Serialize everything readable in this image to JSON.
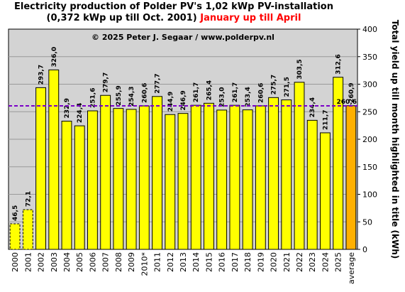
{
  "chart_data": {
    "type": "bar",
    "title_line1": "Electricity production  of Polder  PV's  1,02 kWp PV-installation",
    "title_line2": "(0,372 kWp up till Oct. 2001)",
    "title_highlight": "January up till April",
    "copyright": "© 2025 Peter J. Segaar / www.polderpv.nl",
    "ylabel": "Total yield up till month highlighted in title (kWh)",
    "ylim": [
      0,
      400
    ],
    "yticks": [
      "0",
      "50",
      "100",
      "150",
      "200",
      "250",
      "300",
      "350",
      "400"
    ],
    "categories": [
      "2000",
      "2001",
      "2002",
      "2003",
      "2004",
      "2005",
      "2006",
      "2007",
      "2008",
      "2009",
      "2010*",
      "2011",
      "2012",
      "2013",
      "2014",
      "2015",
      "2016",
      "2017",
      "2018",
      "2019",
      "2020",
      "2021",
      "2022",
      "2023",
      "2024",
      "2025",
      "average"
    ],
    "values": [
      46.5,
      72.1,
      293.7,
      326.0,
      232.9,
      224.4,
      251.6,
      279.7,
      255.9,
      254.3,
      260.6,
      277.7,
      244.9,
      246.9,
      261.7,
      265.4,
      253.0,
      261.7,
      253.4,
      260.6,
      275.7,
      271.5,
      303.5,
      234.4,
      211.7,
      312.6,
      260.9
    ],
    "value_labels": [
      "46,5",
      "72,1",
      "293,7",
      "326,0",
      "232,9",
      "224,4",
      "251,6",
      "279,7",
      "255,9",
      "254,3",
      "260,6",
      "277,7",
      "244,9",
      "246,9",
      "261,7",
      "265,4",
      "253,0",
      "261,7",
      "253,4",
      "260,6",
      "275,7",
      "271,5",
      "303,5",
      "234,4",
      "211,7",
      "312,6",
      "260,9"
    ],
    "dashed_bars": [
      "2000",
      "2001"
    ],
    "average_line": {
      "value": 260.6,
      "label": "260,6",
      "color": "#7a00c8"
    },
    "average_bar_label_color": "#ff0055",
    "colors": {
      "bar": "#ffff00",
      "average_bar": "#ffb000",
      "plot_bg": "#d3d3d3",
      "highlight": "#ff0000"
    },
    "grid": true,
    "legend": "none"
  }
}
